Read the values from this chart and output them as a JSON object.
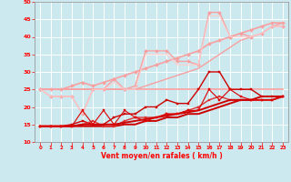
{
  "title": "",
  "xlabel": "Vent moyen/en rafales ( km/h )",
  "xlim": [
    -0.5,
    23.5
  ],
  "ylim": [
    10,
    50
  ],
  "yticks": [
    10,
    15,
    20,
    25,
    30,
    35,
    40,
    45,
    50
  ],
  "xticks": [
    0,
    1,
    2,
    3,
    4,
    5,
    6,
    7,
    8,
    9,
    10,
    11,
    12,
    13,
    14,
    15,
    16,
    17,
    18,
    19,
    20,
    21,
    22,
    23
  ],
  "bg_color": "#cce9f0",
  "grid_color": "#ffffff",
  "series": [
    {
      "x": [
        0,
        1,
        2,
        3,
        4,
        5,
        6,
        7,
        8,
        9,
        10,
        11,
        12,
        13,
        14,
        15,
        16,
        17,
        18,
        19,
        20,
        21,
        22,
        23
      ],
      "y": [
        25,
        25,
        25,
        25,
        25,
        25,
        25,
        25,
        25,
        25,
        25,
        25,
        25,
        25,
        25,
        25,
        25,
        25,
        25,
        25,
        25,
        25,
        25,
        25
      ],
      "color": "#f8a0a0",
      "lw": 1.2,
      "marker": null,
      "ms": 0
    },
    {
      "x": [
        0,
        1,
        2,
        3,
        4,
        5,
        6,
        7,
        8,
        9,
        10,
        11,
        12,
        13,
        14,
        15,
        16,
        17,
        18,
        19,
        20,
        21,
        22,
        23
      ],
      "y": [
        25,
        25,
        25,
        26,
        27,
        26,
        27,
        28,
        29,
        30,
        31,
        32,
        33,
        34,
        35,
        36,
        38,
        39,
        40,
        41,
        42,
        43,
        44,
        44
      ],
      "color": "#f8a0a0",
      "lw": 1.2,
      "marker": "D",
      "ms": 2.0
    },
    {
      "x": [
        0,
        1,
        2,
        3,
        4,
        5,
        6,
        7,
        8,
        9,
        10,
        11,
        12,
        13,
        14,
        15,
        16,
        17,
        18,
        19,
        20,
        21,
        22,
        23
      ],
      "y": [
        25,
        23,
        23,
        23,
        18,
        25,
        25,
        28,
        25,
        26,
        36,
        36,
        36,
        33,
        33,
        32,
        47,
        47,
        40,
        41,
        40,
        41,
        43,
        43
      ],
      "color": "#f8a0a0",
      "lw": 1.0,
      "marker": "D",
      "ms": 2.0
    },
    {
      "x": [
        0,
        1,
        2,
        3,
        4,
        5,
        6,
        7,
        8,
        9,
        10,
        11,
        12,
        13,
        14,
        15,
        16,
        17,
        18,
        19,
        20,
        21,
        22,
        23
      ],
      "y": [
        25,
        25,
        25,
        25,
        25,
        25,
        25,
        25,
        25,
        25,
        26,
        27,
        28,
        29,
        30,
        31,
        33,
        35,
        37,
        39,
        40,
        41,
        43,
        44
      ],
      "color": "#f8a0a0",
      "lw": 1.0,
      "marker": null,
      "ms": 0
    },
    {
      "x": [
        0,
        1,
        2,
        3,
        4,
        5,
        6,
        7,
        8,
        9,
        10,
        11,
        12,
        13,
        14,
        15,
        16,
        17,
        18,
        19,
        20,
        21,
        22,
        23
      ],
      "y": [
        25,
        23,
        23,
        23,
        18,
        25,
        25,
        27,
        25,
        25,
        35,
        35,
        35,
        32,
        32,
        32,
        46,
        46,
        40,
        40,
        40,
        41,
        43,
        43
      ],
      "color": "#ffcccc",
      "lw": 0.8,
      "marker": null,
      "ms": 0
    },
    {
      "x": [
        0,
        1,
        2,
        3,
        4,
        5,
        6,
        7,
        8,
        9,
        10,
        11,
        12,
        13,
        14,
        15,
        16,
        17,
        18,
        19,
        20,
        21,
        22,
        23
      ],
      "y": [
        14.5,
        14.5,
        14.5,
        14.5,
        14.5,
        14.5,
        14.5,
        14.5,
        15,
        15,
        16,
        16,
        17,
        17,
        18,
        18,
        19,
        20,
        21,
        22,
        22,
        22,
        22,
        23
      ],
      "color": "#cc0000",
      "lw": 1.4,
      "marker": null,
      "ms": 0
    },
    {
      "x": [
        0,
        1,
        2,
        3,
        4,
        5,
        6,
        7,
        8,
        9,
        10,
        11,
        12,
        13,
        14,
        15,
        16,
        17,
        18,
        19,
        20,
        21,
        22,
        23
      ],
      "y": [
        14.5,
        14.5,
        14.5,
        15,
        16,
        15,
        15,
        17,
        18,
        18,
        20,
        20,
        22,
        21,
        21,
        25,
        30,
        30,
        25,
        25,
        25,
        23,
        23,
        23
      ],
      "color": "#cc0000",
      "lw": 1.0,
      "marker": "s",
      "ms": 2.0
    },
    {
      "x": [
        0,
        1,
        2,
        3,
        4,
        5,
        6,
        7,
        8,
        9,
        10,
        11,
        12,
        13,
        14,
        15,
        16,
        17,
        18,
        19,
        20,
        21,
        22,
        23
      ],
      "y": [
        14.5,
        14.5,
        14.5,
        14.5,
        15,
        16,
        14.5,
        14.5,
        16,
        17,
        17,
        17,
        18,
        18,
        19,
        20,
        22,
        23,
        22,
        22,
        22,
        22,
        22,
        23
      ],
      "color": "#dd3333",
      "lw": 1.0,
      "marker": "s",
      "ms": 2.0
    },
    {
      "x": [
        0,
        1,
        2,
        3,
        4,
        5,
        6,
        7,
        8,
        9,
        10,
        11,
        12,
        13,
        14,
        15,
        16,
        17,
        18,
        19,
        20,
        21,
        22,
        23
      ],
      "y": [
        14.5,
        14.5,
        14.5,
        14.5,
        15,
        15,
        15,
        15,
        15.5,
        16,
        16.5,
        17,
        17.5,
        18,
        18.5,
        19,
        20,
        21,
        22,
        22,
        22,
        23,
        23,
        23
      ],
      "color": "#cc0000",
      "lw": 1.4,
      "marker": null,
      "ms": 0
    },
    {
      "x": [
        0,
        1,
        2,
        3,
        4,
        5,
        6,
        7,
        8,
        9,
        10,
        11,
        12,
        13,
        14,
        15,
        16,
        17,
        18,
        19,
        20,
        21,
        22,
        23
      ],
      "y": [
        14.5,
        14.5,
        14.5,
        14.5,
        19,
        15,
        19,
        15,
        19,
        17,
        16,
        17,
        18,
        18,
        19,
        19,
        25,
        22,
        25,
        23,
        22,
        22,
        22,
        23
      ],
      "color": "#dd0000",
      "lw": 0.8,
      "marker": "s",
      "ms": 1.8
    }
  ]
}
